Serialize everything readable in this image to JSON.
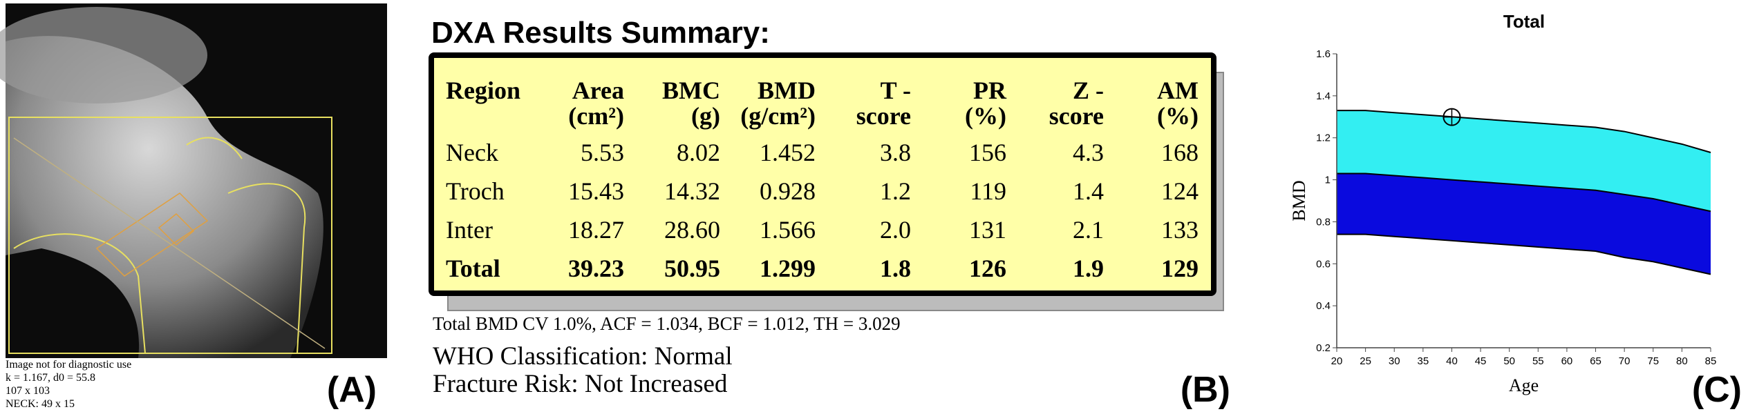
{
  "panel_a": {
    "caption": [
      "Image not for diagnostic use",
      "k = 1.167, d0 = 55.8",
      "107 x 103",
      "NECK: 49 x 15"
    ],
    "label": "(A)"
  },
  "panel_b": {
    "title": "DXA Results Summary:",
    "table": {
      "header": [
        [
          "Region",
          ""
        ],
        [
          "Area",
          "(cm²)"
        ],
        [
          "BMC",
          "(g)"
        ],
        [
          "BMD",
          "(g/cm²)"
        ],
        [
          "T -",
          "score"
        ],
        [
          "PR",
          "(%)"
        ],
        [
          "Z -",
          "score"
        ],
        [
          "AM",
          "(%)"
        ]
      ],
      "rows": [
        [
          "Neck",
          "5.53",
          "8.02",
          "1.452",
          "3.8",
          "156",
          "4.3",
          "168"
        ],
        [
          "Troch",
          "15.43",
          "14.32",
          "0.928",
          "1.2",
          "119",
          "1.4",
          "124"
        ],
        [
          "Inter",
          "18.27",
          "28.60",
          "1.566",
          "2.0",
          "131",
          "2.1",
          "133"
        ],
        [
          "Total",
          "39.23",
          "50.95",
          "1.299",
          "1.8",
          "126",
          "1.9",
          "129"
        ]
      ]
    },
    "notes": [
      "Total BMD CV 1.0%, ACF = 1.034, BCF = 1.012, TH = 3.029",
      "WHO Classification: Normal",
      "Fracture Risk: Not Increased"
    ],
    "label": "(B)"
  },
  "chart_data": {
    "type": "band",
    "title": "Total",
    "x_label": "Age",
    "y_label": "BMD",
    "x": [
      20,
      25,
      30,
      35,
      40,
      45,
      50,
      55,
      60,
      65,
      70,
      75,
      80,
      85
    ],
    "series": [
      {
        "color": "#33eef2",
        "values": [
          1.33,
          1.33,
          1.32,
          1.31,
          1.3,
          1.29,
          1.28,
          1.27,
          1.26,
          1.25,
          1.23,
          1.2,
          1.17,
          1.13
        ]
      },
      {
        "color": "#0a0ade",
        "values": [
          1.03,
          1.03,
          1.02,
          1.01,
          1.0,
          0.99,
          0.98,
          0.97,
          0.96,
          0.95,
          0.93,
          0.91,
          0.88,
          0.85
        ]
      },
      {
        "color": "#000000",
        "values": [
          0.74,
          0.74,
          0.73,
          0.72,
          0.71,
          0.7,
          0.69,
          0.68,
          0.67,
          0.66,
          0.63,
          0.61,
          0.58,
          0.55
        ]
      }
    ],
    "point": {
      "x": 40,
      "y": 1.299
    },
    "xlim": [
      20,
      85
    ],
    "xticks": [
      20,
      25,
      30,
      35,
      40,
      45,
      50,
      55,
      60,
      65,
      70,
      75,
      80,
      85
    ],
    "ylim": [
      0.2,
      1.6
    ],
    "yticks": [
      0.2,
      0.4,
      0.6,
      0.8,
      1.0,
      1.2,
      1.4,
      1.6
    ],
    "label": "(C)"
  }
}
